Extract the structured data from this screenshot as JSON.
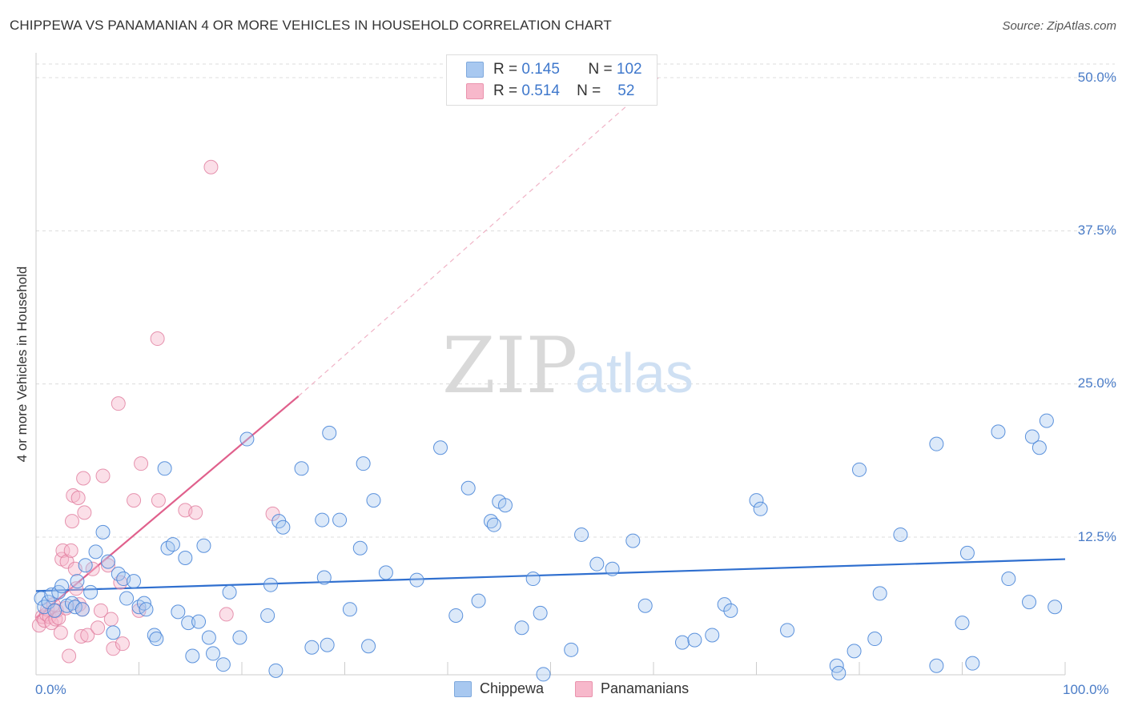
{
  "title": "CHIPPEWA VS PANAMANIAN 4 OR MORE VEHICLES IN HOUSEHOLD CORRELATION CHART",
  "source": "Source: ZipAtlas.com",
  "watermark": {
    "zip": "ZIP",
    "atlas": "atlas"
  },
  "legend_top": {
    "rows": [
      {
        "r_label": "R =",
        "r_value": "0.145",
        "n_label": "N =",
        "n_value": "102",
        "color": "#a8c8f0"
      },
      {
        "r_label": "R =",
        "r_value": "0.514",
        "n_label": "N =",
        "n_value": "52",
        "color": "#f7b8cb"
      }
    ]
  },
  "legend_bottom": [
    {
      "label": "Chippewa",
      "color": "#a8c8f0"
    },
    {
      "label": "Panamanians",
      "color": "#f7b8cb"
    }
  ],
  "chart_data": {
    "type": "scatter",
    "title": "CHIPPEWA VS PANAMANIAN 4 OR MORE VEHICLES IN HOUSEHOLD CORRELATION CHART",
    "xlabel": "",
    "ylabel": "4 or more Vehicles in Household",
    "xlim": [
      0,
      100
    ],
    "ylim": [
      0,
      50
    ],
    "x_tick_labels": [
      "0.0%",
      "100.0%"
    ],
    "y_ticks": [
      12.5,
      25.0,
      37.5,
      50.0
    ],
    "y_tick_labels": [
      "12.5%",
      "25.0%",
      "37.5%",
      "50.0%"
    ],
    "series": [
      {
        "name": "Chippewa",
        "color": "#4a86d8",
        "fill": "#a8c8f0",
        "trend": {
          "x0": 0,
          "y0": 8.1,
          "x1": 100,
          "y1": 10.7,
          "color": "#2f6fcf"
        },
        "points": [
          [
            0.5,
            7.5
          ],
          [
            0.8,
            6.8
          ],
          [
            1.2,
            7.2
          ],
          [
            1.5,
            7.8
          ],
          [
            1.8,
            6.5
          ],
          [
            2.2,
            8.0
          ],
          [
            2.5,
            8.5
          ],
          [
            3.0,
            6.9
          ],
          [
            3.5,
            7.1
          ],
          [
            3.8,
            6.8
          ],
          [
            4.0,
            8.9
          ],
          [
            4.5,
            6.6
          ],
          [
            4.8,
            10.2
          ],
          [
            5.3,
            8.0
          ],
          [
            5.8,
            11.3
          ],
          [
            6.5,
            12.9
          ],
          [
            7.0,
            10.5
          ],
          [
            7.5,
            4.7
          ],
          [
            8.0,
            9.5
          ],
          [
            8.5,
            9.1
          ],
          [
            8.8,
            7.5
          ],
          [
            9.5,
            8.9
          ],
          [
            10.0,
            6.8
          ],
          [
            10.5,
            7.1
          ],
          [
            10.7,
            6.6
          ],
          [
            11.5,
            4.5
          ],
          [
            11.7,
            4.2
          ],
          [
            12.5,
            18.1
          ],
          [
            12.8,
            11.6
          ],
          [
            13.3,
            11.9
          ],
          [
            13.8,
            6.4
          ],
          [
            14.5,
            10.8
          ],
          [
            14.8,
            5.5
          ],
          [
            15.2,
            2.8
          ],
          [
            15.8,
            5.6
          ],
          [
            16.3,
            11.8
          ],
          [
            16.8,
            4.3
          ],
          [
            17.2,
            3.0
          ],
          [
            18.2,
            2.1
          ],
          [
            18.8,
            8.0
          ],
          [
            19.8,
            4.3
          ],
          [
            20.5,
            20.5
          ],
          [
            22.5,
            6.1
          ],
          [
            22.8,
            8.6
          ],
          [
            23.3,
            1.6
          ],
          [
            23.6,
            13.8
          ],
          [
            24.0,
            13.3
          ],
          [
            25.8,
            18.1
          ],
          [
            26.8,
            3.5
          ],
          [
            27.8,
            13.9
          ],
          [
            28.0,
            9.2
          ],
          [
            28.3,
            3.7
          ],
          [
            28.5,
            21.0
          ],
          [
            29.5,
            13.9
          ],
          [
            30.5,
            6.6
          ],
          [
            31.5,
            11.6
          ],
          [
            31.8,
            18.5
          ],
          [
            32.3,
            3.6
          ],
          [
            32.8,
            15.5
          ],
          [
            34.0,
            9.6
          ],
          [
            37.0,
            9.0
          ],
          [
            39.3,
            19.8
          ],
          [
            40.8,
            6.1
          ],
          [
            42.0,
            16.5
          ],
          [
            43.0,
            7.3
          ],
          [
            44.2,
            13.8
          ],
          [
            44.5,
            13.5
          ],
          [
            45.0,
            15.4
          ],
          [
            45.6,
            15.1
          ],
          [
            47.2,
            5.1
          ],
          [
            48.3,
            9.1
          ],
          [
            49.0,
            6.3
          ],
          [
            49.3,
            1.3
          ],
          [
            52.0,
            3.3
          ],
          [
            53.0,
            12.7
          ],
          [
            54.5,
            10.3
          ],
          [
            56.0,
            9.9
          ],
          [
            58.0,
            12.2
          ],
          [
            59.2,
            6.9
          ],
          [
            62.8,
            3.9
          ],
          [
            64.0,
            4.1
          ],
          [
            65.7,
            4.5
          ],
          [
            66.9,
            7.0
          ],
          [
            67.5,
            6.5
          ],
          [
            70.0,
            15.5
          ],
          [
            70.4,
            14.8
          ],
          [
            73.0,
            4.9
          ],
          [
            77.8,
            2.0
          ],
          [
            78.0,
            1.4
          ],
          [
            79.5,
            3.2
          ],
          [
            80.0,
            18.0
          ],
          [
            81.5,
            4.2
          ],
          [
            82.0,
            7.9
          ],
          [
            84.0,
            12.7
          ],
          [
            87.5,
            2.0
          ],
          [
            87.5,
            20.1
          ],
          [
            90.0,
            5.5
          ],
          [
            90.5,
            11.2
          ],
          [
            91.0,
            2.2
          ],
          [
            93.5,
            21.1
          ],
          [
            94.5,
            9.1
          ],
          [
            96.5,
            7.2
          ],
          [
            96.8,
            20.7
          ],
          [
            97.5,
            19.8
          ],
          [
            98.2,
            22.0
          ],
          [
            99.0,
            6.8
          ]
        ]
      },
      {
        "name": "Panamanians",
        "color": "#e07a9c",
        "fill": "#f7b8cb",
        "trend": {
          "x0": 0,
          "y0": 5.9,
          "x1": 25.5,
          "y1": 24.0,
          "color": "#e0608c"
        },
        "trend_extension": {
          "x0": 25.5,
          "y0": 24.0,
          "x1": 60.5,
          "y1": 50.0
        },
        "points": [
          [
            0.3,
            5.3
          ],
          [
            0.6,
            6.0
          ],
          [
            0.8,
            5.7
          ],
          [
            1.0,
            6.2
          ],
          [
            1.1,
            6.6
          ],
          [
            1.3,
            6.0
          ],
          [
            1.5,
            5.5
          ],
          [
            1.7,
            7.0
          ],
          [
            1.9,
            5.8
          ],
          [
            2.0,
            6.5
          ],
          [
            2.2,
            5.9
          ],
          [
            2.4,
            4.7
          ],
          [
            2.5,
            10.7
          ],
          [
            2.6,
            11.4
          ],
          [
            2.9,
            6.7
          ],
          [
            3.0,
            10.5
          ],
          [
            3.2,
            2.8
          ],
          [
            3.4,
            11.4
          ],
          [
            3.5,
            13.8
          ],
          [
            3.6,
            15.9
          ],
          [
            3.8,
            9.9
          ],
          [
            3.9,
            8.3
          ],
          [
            4.1,
            15.7
          ],
          [
            4.2,
            7.0
          ],
          [
            4.4,
            4.4
          ],
          [
            4.5,
            6.6
          ],
          [
            4.6,
            17.3
          ],
          [
            4.7,
            14.5
          ],
          [
            5.0,
            4.5
          ],
          [
            5.5,
            9.9
          ],
          [
            6.0,
            5.1
          ],
          [
            6.3,
            6.5
          ],
          [
            6.5,
            17.5
          ],
          [
            7.0,
            10.2
          ],
          [
            7.3,
            5.8
          ],
          [
            7.5,
            3.4
          ],
          [
            8.0,
            23.4
          ],
          [
            8.2,
            8.8
          ],
          [
            8.4,
            3.8
          ],
          [
            9.5,
            15.5
          ],
          [
            10.0,
            6.5
          ],
          [
            10.2,
            18.5
          ],
          [
            11.8,
            28.7
          ],
          [
            11.9,
            15.5
          ],
          [
            14.5,
            14.7
          ],
          [
            15.5,
            14.5
          ],
          [
            17.0,
            42.7
          ],
          [
            18.5,
            6.2
          ],
          [
            23.0,
            14.4
          ]
        ]
      }
    ]
  }
}
